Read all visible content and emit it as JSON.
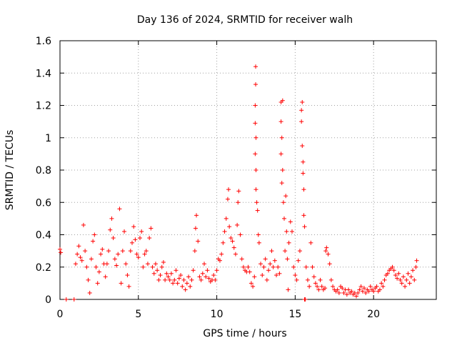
{
  "chart_data": {
    "type": "scatter",
    "title": "Day 136 of 2024, SRMTID for receiver walh",
    "xlabel": "GPS time / hours",
    "ylabel": "SRMTID / TECUs",
    "xlim": [
      0,
      24
    ],
    "ylim": [
      0,
      1.6
    ],
    "xticks": [
      0,
      5,
      10,
      15,
      20
    ],
    "xtick_labels": [
      "0",
      "5",
      "10",
      "15",
      "20"
    ],
    "yticks": [
      0,
      0.2,
      0.4,
      0.6,
      0.8,
      1.0,
      1.2,
      1.4,
      1.6
    ],
    "ytick_labels": [
      "0",
      "0.2",
      "0.4",
      "0.6",
      "0.8",
      "1",
      "1.2",
      "1.4",
      "1.6"
    ],
    "grid": true,
    "marker": "+",
    "marker_color": "#ff0000",
    "series": [
      {
        "name": "walh",
        "points": [
          [
            0.0,
            0.31
          ],
          [
            0.05,
            0.29
          ],
          [
            0.4,
            0.0
          ],
          [
            0.9,
            0.0
          ],
          [
            1.0,
            0.22
          ],
          [
            1.1,
            0.28
          ],
          [
            1.2,
            0.33
          ],
          [
            1.3,
            0.26
          ],
          [
            1.4,
            0.24
          ],
          [
            1.5,
            0.46
          ],
          [
            1.6,
            0.3
          ],
          [
            1.7,
            0.2
          ],
          [
            1.8,
            0.12
          ],
          [
            1.9,
            0.04
          ],
          [
            2.0,
            0.25
          ],
          [
            2.1,
            0.36
          ],
          [
            2.2,
            0.4
          ],
          [
            2.3,
            0.2
          ],
          [
            2.4,
            0.1
          ],
          [
            2.5,
            0.17
          ],
          [
            2.6,
            0.28
          ],
          [
            2.7,
            0.31
          ],
          [
            2.8,
            0.22
          ],
          [
            2.9,
            0.14
          ],
          [
            3.0,
            0.22
          ],
          [
            3.1,
            0.3
          ],
          [
            3.2,
            0.43
          ],
          [
            3.3,
            0.5
          ],
          [
            3.4,
            0.38
          ],
          [
            3.5,
            0.25
          ],
          [
            3.6,
            0.21
          ],
          [
            3.7,
            0.28
          ],
          [
            3.8,
            0.56
          ],
          [
            3.9,
            0.1
          ],
          [
            4.0,
            0.3
          ],
          [
            4.1,
            0.42
          ],
          [
            4.2,
            0.22
          ],
          [
            4.3,
            0.15
          ],
          [
            4.4,
            0.08
          ],
          [
            4.5,
            0.3
          ],
          [
            4.6,
            0.35
          ],
          [
            4.7,
            0.45
          ],
          [
            4.8,
            0.37
          ],
          [
            4.9,
            0.28
          ],
          [
            5.0,
            0.26
          ],
          [
            5.1,
            0.38
          ],
          [
            5.2,
            0.42
          ],
          [
            5.3,
            0.2
          ],
          [
            5.4,
            0.28
          ],
          [
            5.5,
            0.3
          ],
          [
            5.6,
            0.22
          ],
          [
            5.7,
            0.38
          ],
          [
            5.8,
            0.44
          ],
          [
            5.9,
            0.2
          ],
          [
            6.0,
            0.16
          ],
          [
            6.1,
            0.22
          ],
          [
            6.2,
            0.18
          ],
          [
            6.3,
            0.12
          ],
          [
            6.4,
            0.15
          ],
          [
            6.5,
            0.2
          ],
          [
            6.6,
            0.23
          ],
          [
            6.7,
            0.12
          ],
          [
            6.8,
            0.16
          ],
          [
            6.9,
            0.14
          ],
          [
            7.0,
            0.12
          ],
          [
            7.1,
            0.16
          ],
          [
            7.2,
            0.1
          ],
          [
            7.3,
            0.12
          ],
          [
            7.4,
            0.18
          ],
          [
            7.5,
            0.1
          ],
          [
            7.6,
            0.13
          ],
          [
            7.7,
            0.15
          ],
          [
            7.8,
            0.08
          ],
          [
            7.9,
            0.12
          ],
          [
            8.0,
            0.06
          ],
          [
            8.1,
            0.1
          ],
          [
            8.2,
            0.14
          ],
          [
            8.3,
            0.08
          ],
          [
            8.4,
            0.12
          ],
          [
            8.5,
            0.18
          ],
          [
            8.6,
            0.3
          ],
          [
            8.65,
            0.44
          ],
          [
            8.7,
            0.52
          ],
          [
            8.8,
            0.36
          ],
          [
            8.9,
            0.14
          ],
          [
            9.0,
            0.12
          ],
          [
            9.1,
            0.16
          ],
          [
            9.2,
            0.22
          ],
          [
            9.3,
            0.14
          ],
          [
            9.4,
            0.18
          ],
          [
            9.5,
            0.13
          ],
          [
            9.6,
            0.11
          ],
          [
            9.7,
            0.12
          ],
          [
            9.8,
            0.15
          ],
          [
            9.9,
            0.12
          ],
          [
            10.0,
            0.18
          ],
          [
            10.1,
            0.25
          ],
          [
            10.2,
            0.24
          ],
          [
            10.3,
            0.28
          ],
          [
            10.4,
            0.35
          ],
          [
            10.5,
            0.42
          ],
          [
            10.6,
            0.5
          ],
          [
            10.7,
            0.62
          ],
          [
            10.75,
            0.68
          ],
          [
            10.8,
            0.45
          ],
          [
            10.9,
            0.38
          ],
          [
            11.0,
            0.36
          ],
          [
            11.1,
            0.32
          ],
          [
            11.2,
            0.28
          ],
          [
            11.3,
            0.46
          ],
          [
            11.35,
            0.6
          ],
          [
            11.4,
            0.67
          ],
          [
            11.5,
            0.4
          ],
          [
            11.6,
            0.25
          ],
          [
            11.7,
            0.2
          ],
          [
            11.8,
            0.18
          ],
          [
            11.9,
            0.17
          ],
          [
            12.0,
            0.2
          ],
          [
            12.1,
            0.17
          ],
          [
            12.2,
            0.1
          ],
          [
            12.3,
            0.08
          ],
          [
            12.4,
            0.14
          ],
          [
            12.45,
            0.9
          ],
          [
            12.45,
            1.09
          ],
          [
            12.45,
            1.2
          ],
          [
            12.48,
            1.33
          ],
          [
            12.48,
            1.44
          ],
          [
            12.5,
            0.8
          ],
          [
            12.5,
            0.68
          ],
          [
            12.5,
            1.0
          ],
          [
            12.55,
            0.6
          ],
          [
            12.6,
            0.55
          ],
          [
            12.65,
            0.4
          ],
          [
            12.7,
            0.35
          ],
          [
            12.8,
            0.22
          ],
          [
            12.9,
            0.15
          ],
          [
            13.0,
            0.2
          ],
          [
            13.1,
            0.25
          ],
          [
            13.2,
            0.12
          ],
          [
            13.3,
            0.18
          ],
          [
            13.4,
            0.22
          ],
          [
            13.5,
            0.3
          ],
          [
            13.6,
            0.2
          ],
          [
            13.7,
            0.24
          ],
          [
            13.8,
            0.15
          ],
          [
            13.9,
            0.2
          ],
          [
            14.0,
            0.16
          ],
          [
            14.1,
            1.1
          ],
          [
            14.1,
            1.22
          ],
          [
            14.1,
            0.9
          ],
          [
            14.15,
            1.0
          ],
          [
            14.15,
            0.72
          ],
          [
            14.2,
            1.23
          ],
          [
            14.2,
            0.8
          ],
          [
            14.25,
            0.6
          ],
          [
            14.3,
            0.5
          ],
          [
            14.35,
            0.3
          ],
          [
            14.4,
            0.64
          ],
          [
            14.45,
            0.42
          ],
          [
            14.5,
            0.25
          ],
          [
            14.55,
            0.06
          ],
          [
            14.6,
            0.35
          ],
          [
            14.7,
            0.48
          ],
          [
            14.8,
            0.42
          ],
          [
            14.9,
            0.2
          ],
          [
            15.0,
            0.15
          ],
          [
            15.1,
            0.12
          ],
          [
            15.2,
            0.24
          ],
          [
            15.3,
            0.3
          ],
          [
            15.4,
            1.17
          ],
          [
            15.4,
            1.1
          ],
          [
            15.45,
            1.22
          ],
          [
            15.45,
            0.95
          ],
          [
            15.5,
            0.85
          ],
          [
            15.5,
            0.78
          ],
          [
            15.55,
            0.68
          ],
          [
            15.55,
            0.52
          ],
          [
            15.6,
            0.45
          ],
          [
            15.6,
            0.0
          ],
          [
            15.65,
            0.0
          ],
          [
            15.7,
            0.2
          ],
          [
            15.8,
            0.12
          ],
          [
            15.9,
            0.08
          ],
          [
            16.0,
            0.35
          ],
          [
            16.1,
            0.2
          ],
          [
            16.2,
            0.14
          ],
          [
            16.3,
            0.1
          ],
          [
            16.4,
            0.08
          ],
          [
            16.5,
            0.06
          ],
          [
            16.6,
            0.12
          ],
          [
            16.7,
            0.08
          ],
          [
            16.8,
            0.06
          ],
          [
            16.9,
            0.07
          ],
          [
            16.95,
            0.3
          ],
          [
            17.0,
            0.32
          ],
          [
            17.1,
            0.28
          ],
          [
            17.2,
            0.22
          ],
          [
            17.3,
            0.12
          ],
          [
            17.4,
            0.08
          ],
          [
            17.5,
            0.06
          ],
          [
            17.6,
            0.05
          ],
          [
            17.7,
            0.06
          ],
          [
            17.8,
            0.04
          ],
          [
            17.9,
            0.08
          ],
          [
            18.0,
            0.07
          ],
          [
            18.1,
            0.04
          ],
          [
            18.2,
            0.06
          ],
          [
            18.3,
            0.03
          ],
          [
            18.4,
            0.06
          ],
          [
            18.5,
            0.04
          ],
          [
            18.6,
            0.05
          ],
          [
            18.7,
            0.03
          ],
          [
            18.8,
            0.04
          ],
          [
            18.9,
            0.02
          ],
          [
            19.0,
            0.04
          ],
          [
            19.1,
            0.06
          ],
          [
            19.2,
            0.08
          ],
          [
            19.3,
            0.05
          ],
          [
            19.4,
            0.07
          ],
          [
            19.5,
            0.04
          ],
          [
            19.6,
            0.06
          ],
          [
            19.7,
            0.05
          ],
          [
            19.8,
            0.08
          ],
          [
            19.9,
            0.06
          ],
          [
            20.0,
            0.05
          ],
          [
            20.1,
            0.07
          ],
          [
            20.2,
            0.08
          ],
          [
            20.3,
            0.05
          ],
          [
            20.4,
            0.06
          ],
          [
            20.5,
            0.1
          ],
          [
            20.6,
            0.08
          ],
          [
            20.7,
            0.12
          ],
          [
            20.8,
            0.15
          ],
          [
            20.9,
            0.16
          ],
          [
            21.0,
            0.18
          ],
          [
            21.1,
            0.19
          ],
          [
            21.2,
            0.2
          ],
          [
            21.3,
            0.18
          ],
          [
            21.4,
            0.15
          ],
          [
            21.5,
            0.13
          ],
          [
            21.6,
            0.16
          ],
          [
            21.7,
            0.12
          ],
          [
            21.8,
            0.1
          ],
          [
            21.9,
            0.14
          ],
          [
            22.0,
            0.08
          ],
          [
            22.1,
            0.12
          ],
          [
            22.2,
            0.16
          ],
          [
            22.3,
            0.1
          ],
          [
            22.4,
            0.14
          ],
          [
            22.5,
            0.18
          ],
          [
            22.6,
            0.12
          ],
          [
            22.7,
            0.2
          ],
          [
            22.75,
            0.24
          ]
        ]
      }
    ]
  }
}
